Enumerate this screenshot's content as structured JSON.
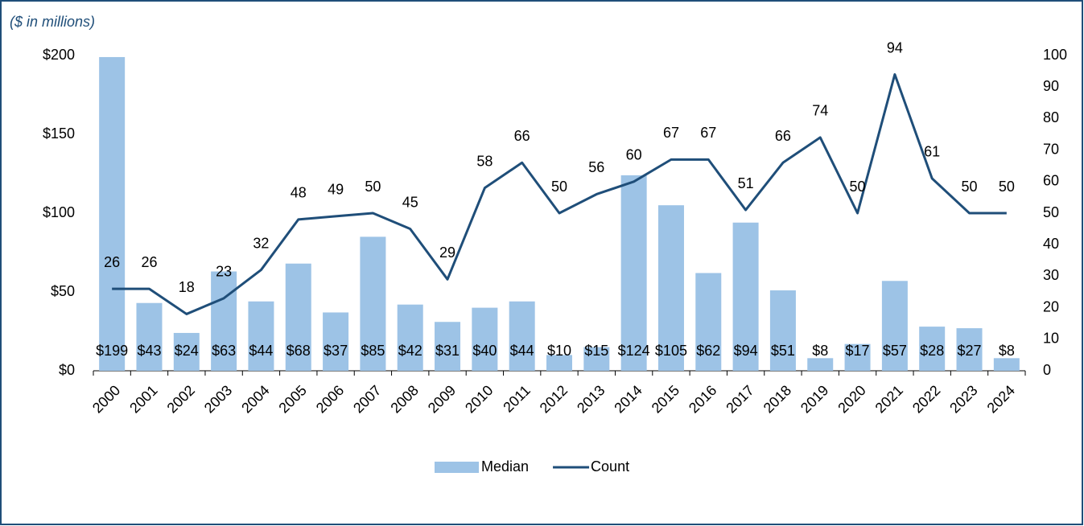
{
  "chart_data": {
    "type": "combo",
    "subtitle": "($ in millions)",
    "categories": [
      "2000",
      "2001",
      "2002",
      "2003",
      "2004",
      "2005",
      "2006",
      "2007",
      "2008",
      "2009",
      "2010",
      "2011",
      "2012",
      "2013",
      "2014",
      "2015",
      "2016",
      "2017",
      "2018",
      "2019",
      "2020",
      "2021",
      "2022",
      "2023",
      "2024"
    ],
    "series": [
      {
        "name": "Median",
        "type": "bar",
        "color": "#9dc3e6",
        "values": [
          199,
          43,
          24,
          63,
          44,
          68,
          37,
          85,
          42,
          31,
          40,
          44,
          10,
          15,
          124,
          105,
          62,
          94,
          51,
          8,
          17,
          57,
          28,
          27,
          8
        ],
        "value_labels": [
          "$199",
          "$43",
          "$24",
          "$63",
          "$44",
          "$68",
          "$37",
          "$85",
          "$42",
          "$31",
          "$40",
          "$44",
          "$10",
          "$15",
          "$124",
          "$105",
          "$62",
          "$94",
          "$51",
          "$8",
          "$17",
          "$57",
          "$28",
          "$27",
          "$8"
        ]
      },
      {
        "name": "Count",
        "type": "line",
        "axis": "y2",
        "color": "#1f4e79",
        "values": [
          26,
          26,
          18,
          23,
          32,
          48,
          49,
          50,
          45,
          29,
          58,
          66,
          50,
          56,
          60,
          67,
          67,
          51,
          66,
          74,
          50,
          94,
          61,
          50,
          50
        ]
      }
    ],
    "ylim": [
      0,
      200
    ],
    "yticks": [
      {
        "value": 0,
        "label": "$0"
      },
      {
        "value": 50,
        "label": "$50"
      },
      {
        "value": 100,
        "label": "$100"
      },
      {
        "value": 150,
        "label": "$150"
      },
      {
        "value": 200,
        "label": "$200"
      }
    ],
    "y2lim": [
      0,
      100
    ],
    "y2ticks": [
      0,
      10,
      20,
      30,
      40,
      50,
      60,
      70,
      80,
      90,
      100
    ],
    "legend": "bottom"
  }
}
